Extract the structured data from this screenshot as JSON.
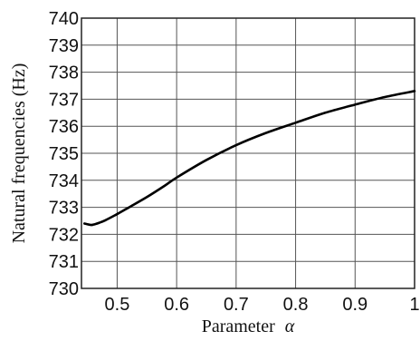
{
  "chart_data": {
    "type": "line",
    "title": "",
    "xlabel": "Parameter",
    "xlabel_symbol": "α",
    "ylabel": "Natural frequencies (Hz)",
    "xlim": [
      0.44,
      1.0
    ],
    "ylim": [
      730,
      740
    ],
    "xticks": [
      0.5,
      0.6,
      0.7,
      0.8,
      0.9,
      1.0
    ],
    "xtick_labels": [
      "0.5",
      "0.6",
      "0.7",
      "0.8",
      "0.9",
      "1"
    ],
    "yticks": [
      730,
      731,
      732,
      733,
      734,
      735,
      736,
      737,
      738,
      739,
      740
    ],
    "ytick_labels": [
      "730",
      "731",
      "732",
      "733",
      "734",
      "735",
      "736",
      "737",
      "738",
      "739",
      "740"
    ],
    "grid": true,
    "series": [
      {
        "color": "#000000",
        "x": [
          0.445,
          0.455,
          0.46,
          0.47,
          0.48,
          0.5,
          0.52,
          0.55,
          0.58,
          0.6,
          0.65,
          0.7,
          0.75,
          0.8,
          0.85,
          0.9,
          0.95,
          1.0
        ],
        "y": [
          732.4,
          732.35,
          732.36,
          732.43,
          732.52,
          732.75,
          733.0,
          733.38,
          733.8,
          734.1,
          734.75,
          735.3,
          735.75,
          736.13,
          736.5,
          736.8,
          737.08,
          737.3
        ]
      }
    ]
  }
}
